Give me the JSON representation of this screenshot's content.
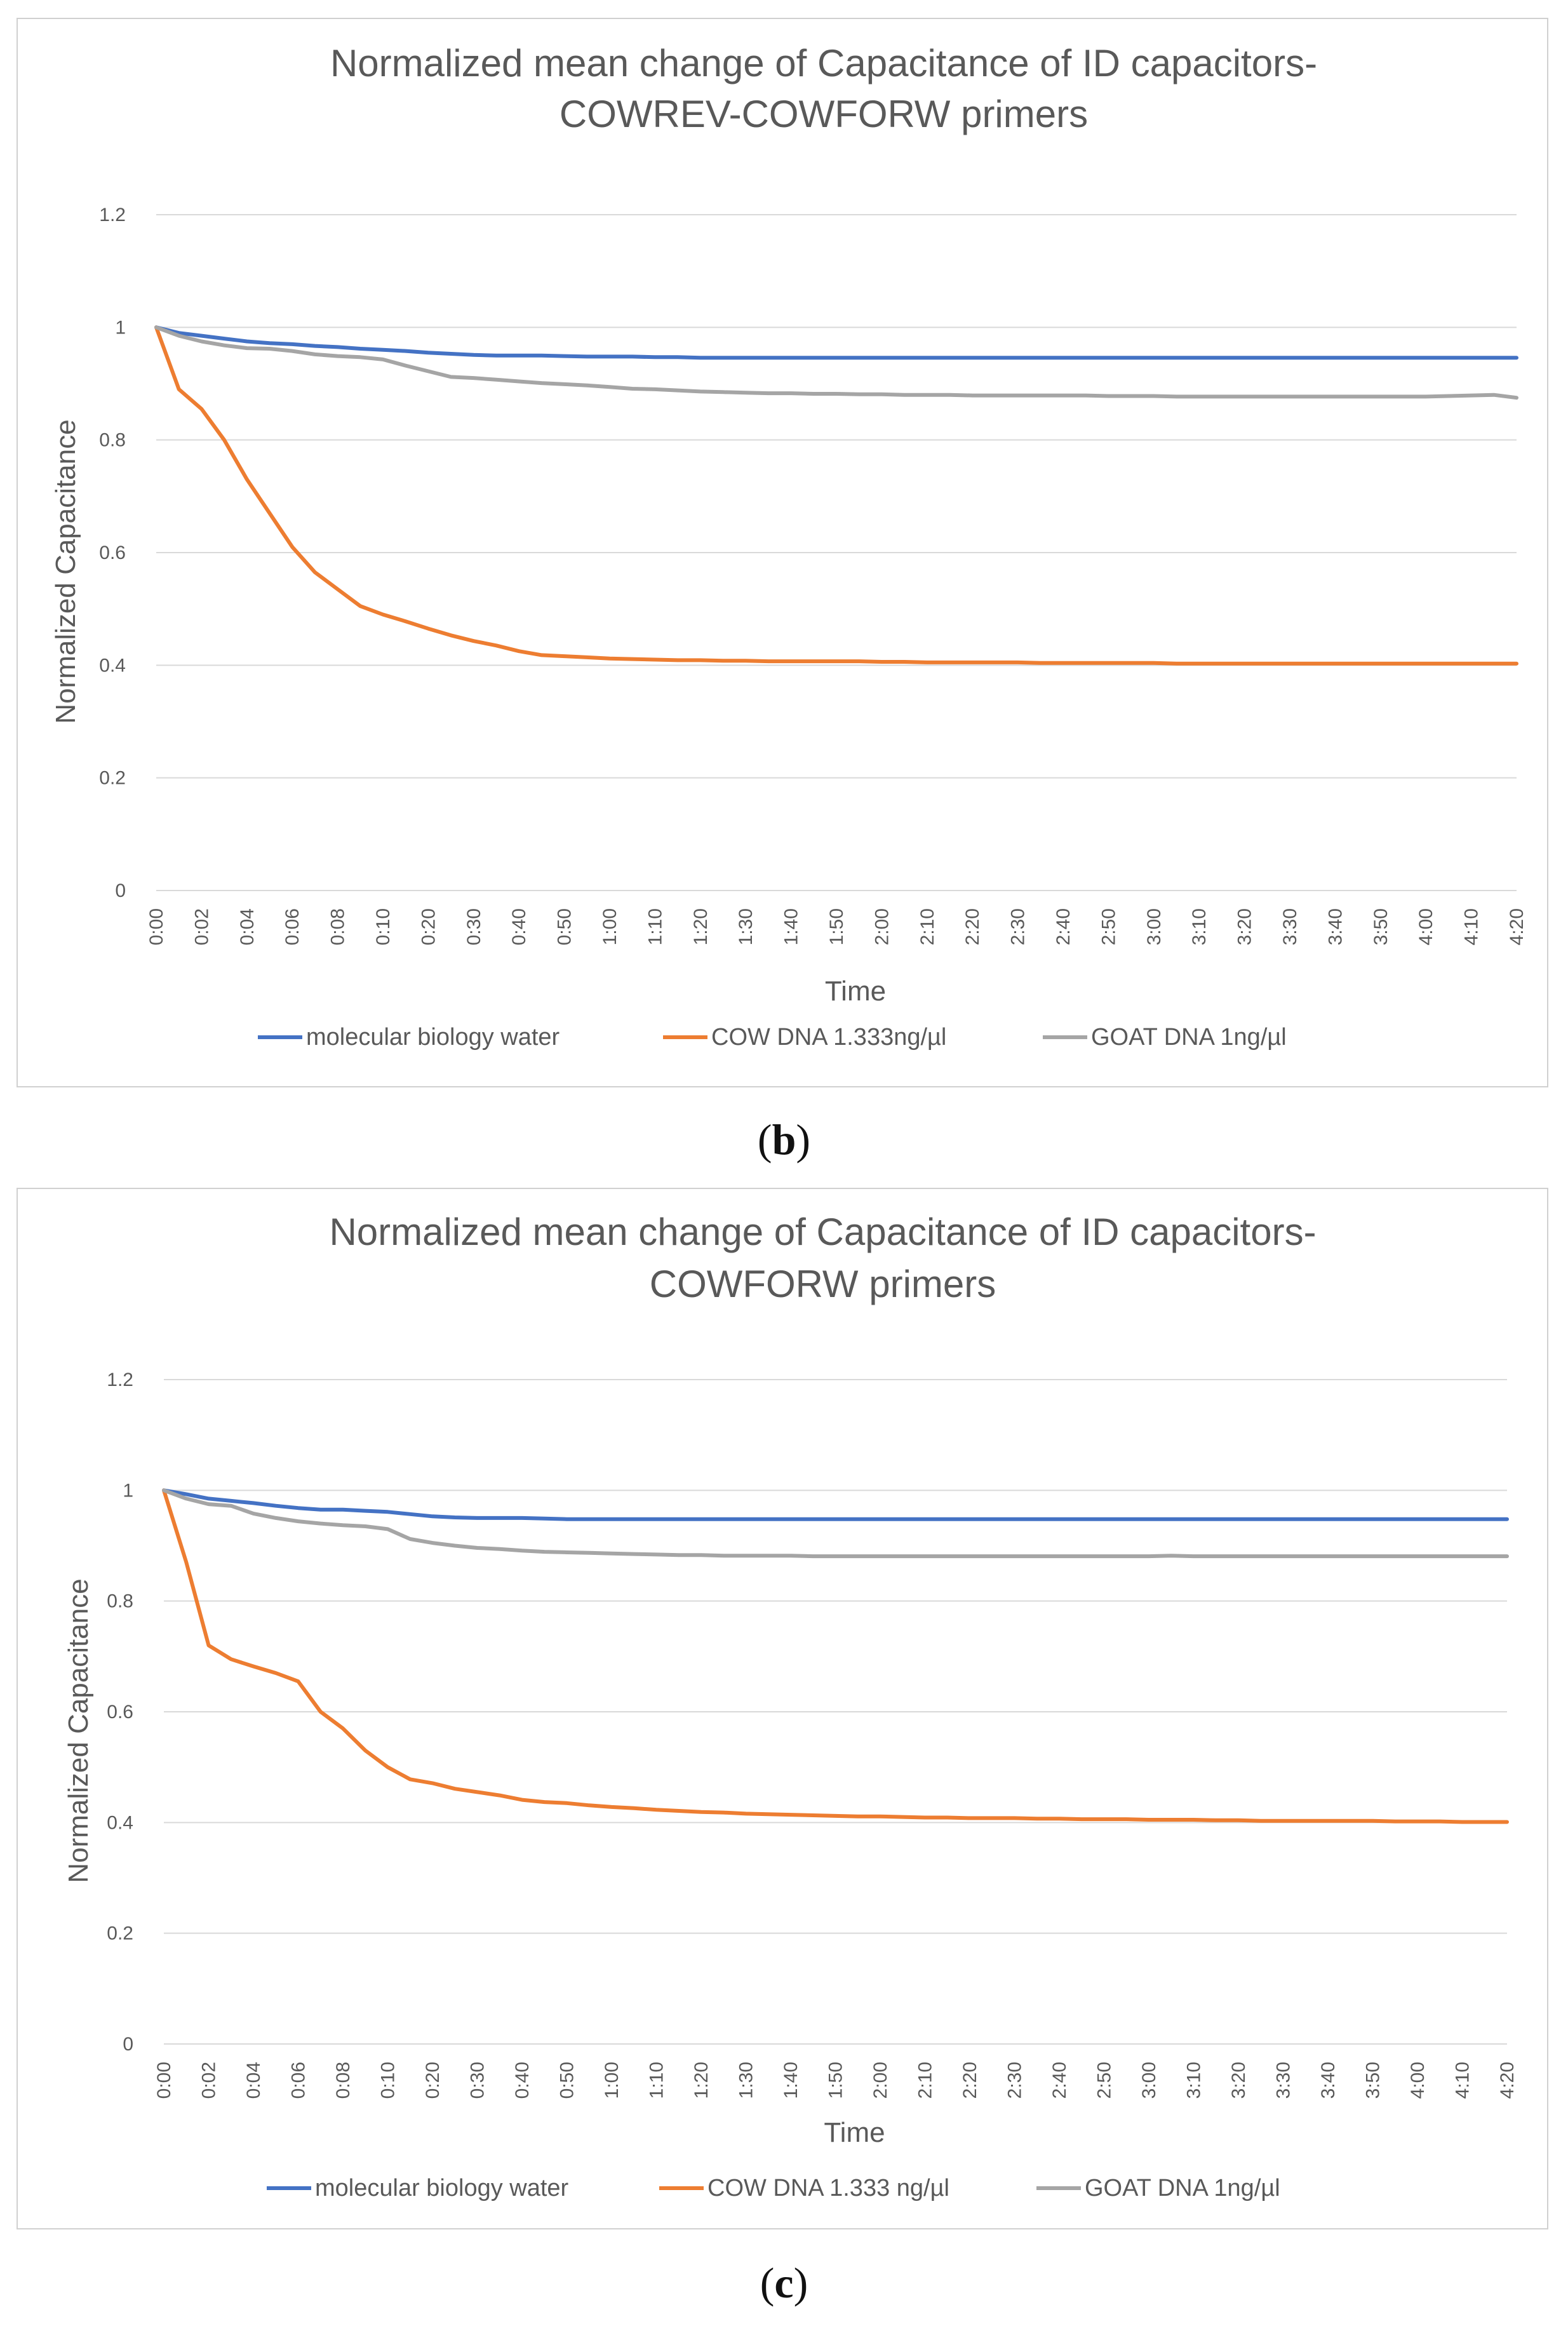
{
  "captions": [
    "b",
    "c"
  ],
  "chart_data": [
    {
      "type": "line",
      "panel_id": "b",
      "title_lines": [
        "Normalized mean change  of Capacitance of ID capacitors-",
        "COWREV-COWFORW primers"
      ],
      "xlabel": "Time",
      "ylabel": "Normalized Capacitance",
      "ylim": [
        0,
        1.2
      ],
      "yticks": [
        "0",
        "0.2",
        "0.4",
        "0.6",
        "0.8",
        "1",
        "1.2"
      ],
      "grid": true,
      "legend_position": "bottom",
      "categories": [
        "0:00",
        "0:01",
        "0:02",
        "0:03",
        "0:04",
        "0:05",
        "0:06",
        "0:07",
        "0:08",
        "0:09",
        "0:10",
        "0:15",
        "0:20",
        "0:25",
        "0:30",
        "0:35",
        "0:40",
        "0:45",
        "0:50",
        "0:55",
        "1:00",
        "1:05",
        "1:10",
        "1:15",
        "1:20",
        "1:25",
        "1:30",
        "1:35",
        "1:40",
        "1:45",
        "1:50",
        "1:55",
        "2:00",
        "2:05",
        "2:10",
        "2:15",
        "2:20",
        "2:25",
        "2:30",
        "2:35",
        "2:40",
        "2:45",
        "2:50",
        "2:55",
        "3:00",
        "3:05",
        "3:10",
        "3:15",
        "3:20",
        "3:25",
        "3:30",
        "3:35",
        "3:40",
        "3:45",
        "3:50",
        "3:55",
        "4:00",
        "4:05",
        "4:10",
        "4:15",
        "4:20"
      ],
      "tick_labels": [
        "0:00",
        "0:02",
        "0:04",
        "0:06",
        "0:08",
        "0:10",
        "0:20",
        "0:30",
        "0:40",
        "0:50",
        "1:00",
        "1:10",
        "1:20",
        "1:30",
        "1:40",
        "1:50",
        "2:00",
        "2:10",
        "2:20",
        "2:30",
        "2:40",
        "2:50",
        "3:00",
        "3:10",
        "3:20",
        "3:30",
        "3:40",
        "3:50",
        "4:00",
        "4:10",
        "4:20"
      ],
      "series": [
        {
          "name": "molecular biology water",
          "color": "#4472c4",
          "values": [
            1.0,
            0.99,
            0.985,
            0.98,
            0.975,
            0.972,
            0.97,
            0.967,
            0.965,
            0.962,
            0.96,
            0.958,
            0.955,
            0.953,
            0.951,
            0.95,
            0.95,
            0.95,
            0.949,
            0.948,
            0.948,
            0.948,
            0.947,
            0.947,
            0.946,
            0.946,
            0.946,
            0.946,
            0.946,
            0.946,
            0.946,
            0.946,
            0.946,
            0.946,
            0.946,
            0.946,
            0.946,
            0.946,
            0.946,
            0.946,
            0.946,
            0.946,
            0.946,
            0.946,
            0.946,
            0.946,
            0.946,
            0.946,
            0.946,
            0.946,
            0.946,
            0.946,
            0.946,
            0.946,
            0.946,
            0.946,
            0.946,
            0.946,
            0.946,
            0.946,
            0.946
          ]
        },
        {
          "name": "COW DNA 1.333ng/µl",
          "color": "#ed7d31",
          "values": [
            1.0,
            0.89,
            0.855,
            0.8,
            0.73,
            0.67,
            0.61,
            0.565,
            0.535,
            0.505,
            0.49,
            0.478,
            0.465,
            0.453,
            0.443,
            0.435,
            0.425,
            0.418,
            0.416,
            0.414,
            0.412,
            0.411,
            0.41,
            0.409,
            0.409,
            0.408,
            0.408,
            0.407,
            0.407,
            0.407,
            0.407,
            0.407,
            0.406,
            0.406,
            0.405,
            0.405,
            0.405,
            0.405,
            0.405,
            0.404,
            0.404,
            0.404,
            0.404,
            0.404,
            0.404,
            0.403,
            0.403,
            0.403,
            0.403,
            0.403,
            0.403,
            0.403,
            0.403,
            0.403,
            0.403,
            0.403,
            0.403,
            0.403,
            0.403,
            0.403,
            0.403
          ]
        },
        {
          "name": "GOAT DNA 1ng/µl",
          "color": "#a5a5a5",
          "values": [
            1.0,
            0.985,
            0.975,
            0.968,
            0.963,
            0.962,
            0.958,
            0.952,
            0.949,
            0.947,
            0.943,
            0.932,
            0.922,
            0.912,
            0.91,
            0.907,
            0.904,
            0.901,
            0.899,
            0.897,
            0.894,
            0.891,
            0.89,
            0.888,
            0.886,
            0.885,
            0.884,
            0.883,
            0.883,
            0.882,
            0.882,
            0.881,
            0.881,
            0.88,
            0.88,
            0.88,
            0.879,
            0.879,
            0.879,
            0.879,
            0.879,
            0.879,
            0.878,
            0.878,
            0.878,
            0.877,
            0.877,
            0.877,
            0.877,
            0.877,
            0.877,
            0.877,
            0.877,
            0.877,
            0.877,
            0.877,
            0.877,
            0.878,
            0.879,
            0.88,
            0.875
          ]
        }
      ]
    },
    {
      "type": "line",
      "panel_id": "c",
      "title_lines": [
        "Normalized mean change  of Capacitance of ID capacitors-",
        "COWFORW primers"
      ],
      "xlabel": "Time",
      "ylabel": "Normalized Capacitance",
      "ylim": [
        0,
        1.2
      ],
      "yticks": [
        "0",
        "0.2",
        "0.4",
        "0.6",
        "0.8",
        "1",
        "1.2"
      ],
      "grid": true,
      "legend_position": "bottom",
      "categories": [
        "0:00",
        "0:01",
        "0:02",
        "0:03",
        "0:04",
        "0:05",
        "0:06",
        "0:07",
        "0:08",
        "0:09",
        "0:10",
        "0:15",
        "0:20",
        "0:25",
        "0:30",
        "0:35",
        "0:40",
        "0:45",
        "0:50",
        "0:55",
        "1:00",
        "1:05",
        "1:10",
        "1:15",
        "1:20",
        "1:25",
        "1:30",
        "1:35",
        "1:40",
        "1:45",
        "1:50",
        "1:55",
        "2:00",
        "2:05",
        "2:10",
        "2:15",
        "2:20",
        "2:25",
        "2:30",
        "2:35",
        "2:40",
        "2:45",
        "2:50",
        "2:55",
        "3:00",
        "3:05",
        "3:10",
        "3:15",
        "3:20",
        "3:25",
        "3:30",
        "3:35",
        "3:40",
        "3:45",
        "3:50",
        "3:55",
        "4:00",
        "4:05",
        "4:10",
        "4:15",
        "4:20"
      ],
      "tick_labels": [
        "0:00",
        "0:02",
        "0:04",
        "0:06",
        "0:08",
        "0:10",
        "0:20",
        "0:30",
        "0:40",
        "0:50",
        "1:00",
        "1:10",
        "1:20",
        "1:30",
        "1:40",
        "1:50",
        "2:00",
        "2:10",
        "2:20",
        "2:30",
        "2:40",
        "2:50",
        "3:00",
        "3:10",
        "3:20",
        "3:30",
        "3:40",
        "3:50",
        "4:00",
        "4:10",
        "4:20"
      ],
      "series": [
        {
          "name": "molecular biology water",
          "color": "#4472c4",
          "values": [
            1.0,
            0.993,
            0.985,
            0.981,
            0.977,
            0.972,
            0.968,
            0.965,
            0.965,
            0.963,
            0.961,
            0.957,
            0.953,
            0.951,
            0.95,
            0.95,
            0.95,
            0.949,
            0.948,
            0.948,
            0.948,
            0.948,
            0.948,
            0.948,
            0.948,
            0.948,
            0.948,
            0.948,
            0.948,
            0.948,
            0.948,
            0.948,
            0.948,
            0.948,
            0.948,
            0.948,
            0.948,
            0.948,
            0.948,
            0.948,
            0.948,
            0.948,
            0.948,
            0.948,
            0.948,
            0.948,
            0.948,
            0.948,
            0.948,
            0.948,
            0.948,
            0.948,
            0.948,
            0.948,
            0.948,
            0.948,
            0.948,
            0.948,
            0.948,
            0.948,
            0.948
          ]
        },
        {
          "name": "COW DNA 1.333 ng/µl",
          "color": "#ed7d31",
          "values": [
            1.0,
            0.87,
            0.72,
            0.695,
            0.682,
            0.67,
            0.655,
            0.6,
            0.57,
            0.53,
            0.5,
            0.478,
            0.471,
            0.461,
            0.455,
            0.449,
            0.441,
            0.437,
            0.435,
            0.431,
            0.428,
            0.426,
            0.423,
            0.421,
            0.419,
            0.418,
            0.416,
            0.415,
            0.414,
            0.413,
            0.412,
            0.411,
            0.411,
            0.41,
            0.409,
            0.409,
            0.408,
            0.408,
            0.408,
            0.407,
            0.407,
            0.406,
            0.406,
            0.406,
            0.405,
            0.405,
            0.405,
            0.404,
            0.404,
            0.403,
            0.403,
            0.403,
            0.403,
            0.403,
            0.403,
            0.402,
            0.402,
            0.402,
            0.401,
            0.401,
            0.401
          ]
        },
        {
          "name": "GOAT DNA 1ng/µl",
          "color": "#a5a5a5",
          "values": [
            1.0,
            0.985,
            0.975,
            0.972,
            0.958,
            0.95,
            0.944,
            0.94,
            0.937,
            0.935,
            0.93,
            0.912,
            0.905,
            0.9,
            0.896,
            0.894,
            0.891,
            0.889,
            0.888,
            0.887,
            0.886,
            0.885,
            0.884,
            0.883,
            0.883,
            0.882,
            0.882,
            0.882,
            0.882,
            0.881,
            0.881,
            0.881,
            0.881,
            0.881,
            0.881,
            0.881,
            0.881,
            0.881,
            0.881,
            0.881,
            0.881,
            0.881,
            0.881,
            0.881,
            0.881,
            0.882,
            0.881,
            0.881,
            0.881,
            0.881,
            0.881,
            0.881,
            0.881,
            0.881,
            0.881,
            0.881,
            0.881,
            0.881,
            0.881,
            0.881,
            0.881
          ]
        }
      ]
    }
  ]
}
